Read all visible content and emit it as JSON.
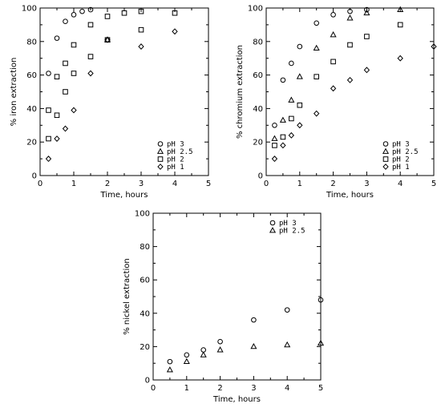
{
  "chart_data": [
    {
      "type": "scatter",
      "xlabel": "Time, hours",
      "ylabel": "% iron extraction",
      "xlim": [
        0,
        5
      ],
      "ylim": [
        0,
        100
      ],
      "xticks": [
        "0",
        "1",
        "2",
        "3",
        "4",
        "5"
      ],
      "yticks": [
        "0",
        "20",
        "40",
        "60",
        "80",
        "100"
      ],
      "legend_position": "bottom-right",
      "series": [
        {
          "name": "pH 3",
          "marker": "circle",
          "points": [
            [
              0.25,
              61
            ],
            [
              0.5,
              82
            ],
            [
              0.75,
              92
            ],
            [
              1.0,
              96
            ],
            [
              1.25,
              98
            ],
            [
              1.5,
              99
            ]
          ]
        },
        {
          "name": "pH 2.5",
          "marker": "triangle",
          "points": [
            [
              2.0,
              81
            ]
          ]
        },
        {
          "name": "pH 2",
          "marker": "square",
          "points": [
            [
              0.25,
              39
            ],
            [
              0.5,
              59
            ],
            [
              0.75,
              67
            ],
            [
              1.0,
              78
            ],
            [
              1.5,
              90
            ],
            [
              2.0,
              95
            ],
            [
              2.5,
              97
            ],
            [
              3.0,
              98
            ],
            [
              4.0,
              97
            ]
          ]
        },
        {
          "name": "pH 1",
          "marker": "diamond",
          "points": [
            [
              0.25,
              10
            ],
            [
              0.5,
              22
            ],
            [
              0.75,
              28
            ],
            [
              1.0,
              39
            ],
            [
              1.5,
              61
            ],
            [
              2.0,
              81
            ],
            [
              3.0,
              77
            ],
            [
              4.0,
              86
            ]
          ]
        },
        {
          "name": "",
          "marker": "square",
          "points": [
            [
              0.25,
              22
            ],
            [
              0.5,
              36
            ],
            [
              0.75,
              50
            ],
            [
              1.0,
              61
            ],
            [
              1.5,
              71
            ],
            [
              2.0,
              81
            ],
            [
              3.0,
              87
            ]
          ]
        }
      ]
    },
    {
      "type": "scatter",
      "xlabel": "Time, hours",
      "ylabel": "% chromium extraction",
      "xlim": [
        0,
        5
      ],
      "ylim": [
        0,
        100
      ],
      "xticks": [
        "0",
        "1",
        "2",
        "3",
        "4",
        "5"
      ],
      "yticks": [
        "0",
        "20",
        "40",
        "60",
        "80",
        "100"
      ],
      "legend_position": "bottom-right",
      "series": [
        {
          "name": "pH 3",
          "marker": "circle",
          "points": [
            [
              0.25,
              30
            ],
            [
              0.5,
              57
            ],
            [
              0.75,
              67
            ],
            [
              1.0,
              77
            ],
            [
              1.5,
              91
            ],
            [
              2.0,
              96
            ],
            [
              2.5,
              98
            ],
            [
              3.0,
              99
            ]
          ]
        },
        {
          "name": "pH 2.5",
          "marker": "triangle",
          "points": [
            [
              0.25,
              22
            ],
            [
              0.5,
              33
            ],
            [
              0.75,
              45
            ],
            [
              1.0,
              59
            ],
            [
              1.5,
              76
            ],
            [
              2.0,
              84
            ],
            [
              2.5,
              94
            ],
            [
              3.0,
              97
            ],
            [
              4.0,
              99
            ]
          ]
        },
        {
          "name": "pH 2",
          "marker": "square",
          "points": [
            [
              0.25,
              18
            ],
            [
              0.5,
              23
            ],
            [
              0.75,
              34
            ],
            [
              1.0,
              42
            ],
            [
              1.5,
              59
            ],
            [
              2.0,
              68
            ],
            [
              2.5,
              78
            ],
            [
              3.0,
              83
            ],
            [
              4.0,
              90
            ]
          ]
        },
        {
          "name": "pH 1",
          "marker": "diamond",
          "points": [
            [
              0.25,
              10
            ],
            [
              0.5,
              18
            ],
            [
              0.75,
              24
            ],
            [
              1.0,
              30
            ],
            [
              1.5,
              37
            ],
            [
              2.0,
              52
            ],
            [
              2.5,
              57
            ],
            [
              3.0,
              63
            ],
            [
              4.0,
              70
            ],
            [
              5.0,
              77
            ]
          ]
        }
      ]
    },
    {
      "type": "scatter",
      "xlabel": "Time, hours",
      "ylabel": "% nickel extraction",
      "xlim": [
        0,
        5
      ],
      "ylim": [
        0,
        100
      ],
      "xticks": [
        "0",
        "1",
        "2",
        "3",
        "4",
        "5"
      ],
      "yticks": [
        "0",
        "20",
        "40",
        "60",
        "80",
        "100"
      ],
      "legend_position": "top-right",
      "series": [
        {
          "name": "pH 3",
          "marker": "circle",
          "points": [
            [
              0.5,
              11
            ],
            [
              1.0,
              15
            ],
            [
              1.5,
              18
            ],
            [
              2.0,
              23
            ],
            [
              3.0,
              36
            ],
            [
              4.0,
              42
            ],
            [
              5.0,
              48
            ]
          ]
        },
        {
          "name": "pH 2.5",
          "marker": "triangle",
          "points": [
            [
              0.5,
              6
            ],
            [
              1.0,
              11
            ],
            [
              1.5,
              15
            ],
            [
              2.0,
              18
            ],
            [
              3.0,
              20
            ],
            [
              4.0,
              21
            ],
            [
              5.0,
              22
            ]
          ]
        }
      ]
    }
  ]
}
